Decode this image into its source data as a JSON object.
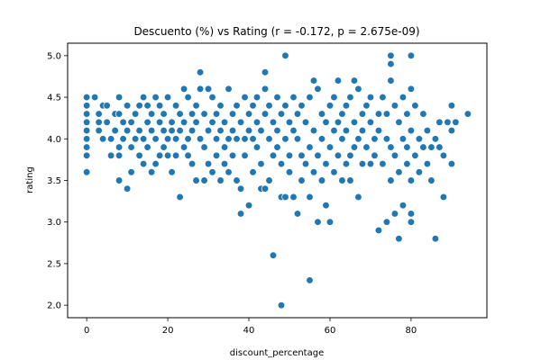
{
  "chart_data": {
    "type": "scatter",
    "title": "Descuento (%) vs Rating (r = -0.172, p = 2.675e-09)",
    "xlabel": "discount_percentage",
    "ylabel": "rating",
    "xlim": [
      -4.7,
      98.7
    ],
    "ylim": [
      1.85,
      5.15
    ],
    "xticks": [
      0,
      20,
      40,
      60,
      80
    ],
    "yticks": [
      2.0,
      2.5,
      3.0,
      3.5,
      4.0,
      4.5,
      5.0
    ],
    "xtick_labels": [
      "0",
      "20",
      "40",
      "60",
      "80"
    ],
    "ytick_labels": [
      "2.0",
      "2.5",
      "3.0",
      "3.5",
      "4.0",
      "4.5",
      "5.0"
    ],
    "marker_color": "#1f77b4",
    "grid": false,
    "points": [
      [
        0,
        4.5
      ],
      [
        0,
        4.4
      ],
      [
        0,
        4.3
      ],
      [
        0,
        4.2
      ],
      [
        0,
        4.1
      ],
      [
        0,
        4.0
      ],
      [
        0,
        3.9
      ],
      [
        0,
        3.8
      ],
      [
        0,
        3.6
      ],
      [
        2,
        4.5
      ],
      [
        3,
        4.1
      ],
      [
        3,
        4.2
      ],
      [
        3,
        4.3
      ],
      [
        4,
        4.0
      ],
      [
        4,
        4.4
      ],
      [
        5,
        4.4
      ],
      [
        5,
        4.2
      ],
      [
        6,
        4.0
      ],
      [
        6,
        3.8
      ],
      [
        7,
        4.1
      ],
      [
        7,
        4.3
      ],
      [
        8,
        3.9
      ],
      [
        8,
        3.8
      ],
      [
        8,
        3.5
      ],
      [
        8,
        4.3
      ],
      [
        8,
        4.5
      ],
      [
        9,
        4.2
      ],
      [
        9,
        4.0
      ],
      [
        10,
        3.4
      ],
      [
        10,
        4.1
      ],
      [
        10,
        4.4
      ],
      [
        11,
        4.2
      ],
      [
        11,
        3.6
      ],
      [
        11,
        3.9
      ],
      [
        12,
        4.0
      ],
      [
        12,
        4.3
      ],
      [
        13,
        4.1
      ],
      [
        13,
        4.4
      ],
      [
        13,
        3.8
      ],
      [
        14,
        4.0
      ],
      [
        14,
        4.5
      ],
      [
        14,
        3.7
      ],
      [
        15,
        4.2
      ],
      [
        15,
        3.9
      ],
      [
        15,
        4.4
      ],
      [
        16,
        4.1
      ],
      [
        16,
        4.3
      ],
      [
        16,
        3.6
      ],
      [
        17,
        4.5
      ],
      [
        17,
        4.0
      ],
      [
        17,
        3.7
      ],
      [
        18,
        4.2
      ],
      [
        18,
        4.4
      ],
      [
        18,
        3.8
      ],
      [
        19,
        4.1
      ],
      [
        19,
        4.3
      ],
      [
        19,
        3.9
      ],
      [
        20,
        4.0
      ],
      [
        20,
        4.5
      ],
      [
        20,
        3.8
      ],
      [
        21,
        4.2
      ],
      [
        21,
        4.1
      ],
      [
        21,
        3.6
      ],
      [
        22,
        4.4
      ],
      [
        22,
        4.0
      ],
      [
        22,
        3.8
      ],
      [
        23,
        4.3
      ],
      [
        23,
        3.3
      ],
      [
        23,
        4.1
      ],
      [
        24,
        4.6
      ],
      [
        24,
        4.2
      ],
      [
        24,
        3.9
      ],
      [
        25,
        4.0
      ],
      [
        25,
        4.5
      ],
      [
        25,
        3.8
      ],
      [
        26,
        4.3
      ],
      [
        26,
        4.1
      ],
      [
        26,
        3.7
      ],
      [
        27,
        4.4
      ],
      [
        27,
        4.2
      ],
      [
        27,
        3.5
      ],
      [
        28,
        4.8
      ],
      [
        28,
        4.0
      ],
      [
        28,
        4.6
      ],
      [
        29,
        4.3
      ],
      [
        29,
        3.9
      ],
      [
        29,
        3.5
      ],
      [
        30,
        4.6
      ],
      [
        30,
        4.1
      ],
      [
        30,
        3.7
      ],
      [
        31,
        4.2
      ],
      [
        31,
        4.5
      ],
      [
        31,
        3.6
      ],
      [
        32,
        4.0
      ],
      [
        32,
        4.3
      ],
      [
        32,
        3.8
      ],
      [
        33,
        4.4
      ],
      [
        33,
        3.5
      ],
      [
        33,
        4.1
      ],
      [
        34,
        4.2
      ],
      [
        34,
        3.9
      ],
      [
        34,
        3.7
      ],
      [
        35,
        4.6
      ],
      [
        35,
        4.0
      ],
      [
        35,
        3.6
      ],
      [
        36,
        4.3
      ],
      [
        36,
        4.1
      ],
      [
        36,
        3.8
      ],
      [
        37,
        4.4
      ],
      [
        37,
        3.5
      ],
      [
        37,
        4.0
      ],
      [
        38,
        3.1
      ],
      [
        38,
        3.4
      ],
      [
        38,
        4.2
      ],
      [
        39,
        4.5
      ],
      [
        39,
        3.8
      ],
      [
        39,
        4.0
      ],
      [
        40,
        4.3
      ],
      [
        40,
        3.2
      ],
      [
        40,
        4.1
      ],
      [
        41,
        4.4
      ],
      [
        41,
        3.6
      ],
      [
        41,
        4.0
      ],
      [
        42,
        4.2
      ],
      [
        42,
        3.9
      ],
      [
        42,
        4.5
      ],
      [
        43,
        3.4
      ],
      [
        43,
        4.1
      ],
      [
        43,
        3.7
      ],
      [
        44,
        4.8
      ],
      [
        44,
        4.3
      ],
      [
        44,
        3.4
      ],
      [
        44,
        4.6
      ],
      [
        45,
        3.5
      ],
      [
        45,
        4.0
      ],
      [
        45,
        4.4
      ],
      [
        46,
        2.6
      ],
      [
        46,
        4.2
      ],
      [
        46,
        3.8
      ],
      [
        47,
        4.5
      ],
      [
        47,
        3.9
      ],
      [
        47,
        4.1
      ],
      [
        48,
        2.0
      ],
      [
        48,
        3.3
      ],
      [
        48,
        4.3
      ],
      [
        48,
        3.7
      ],
      [
        49,
        5.0
      ],
      [
        49,
        4.4
      ],
      [
        49,
        3.3
      ],
      [
        49,
        4.0
      ],
      [
        50,
        3.6
      ],
      [
        50,
        4.2
      ],
      [
        50,
        3.8
      ],
      [
        51,
        4.5
      ],
      [
        51,
        3.3
      ],
      [
        51,
        4.1
      ],
      [
        52,
        3.1
      ],
      [
        52,
        4.0
      ],
      [
        52,
        4.3
      ],
      [
        53,
        3.8
      ],
      [
        53,
        4.4
      ],
      [
        53,
        3.5
      ],
      [
        54,
        4.2
      ],
      [
        54,
        3.7
      ],
      [
        55,
        2.3
      ],
      [
        55,
        4.5
      ],
      [
        55,
        3.9
      ],
      [
        55,
        3.3
      ],
      [
        56,
        4.7
      ],
      [
        56,
        4.1
      ],
      [
        56,
        3.6
      ],
      [
        57,
        3.0
      ],
      [
        57,
        4.6
      ],
      [
        57,
        3.8
      ],
      [
        58,
        4.3
      ],
      [
        58,
        3.5
      ],
      [
        58,
        4.0
      ],
      [
        59,
        3.2
      ],
      [
        59,
        4.2
      ],
      [
        59,
        3.7
      ],
      [
        60,
        3.0
      ],
      [
        60,
        4.4
      ],
      [
        60,
        3.9
      ],
      [
        61,
        4.1
      ],
      [
        61,
        3.6
      ],
      [
        61,
        4.5
      ],
      [
        62,
        4.7
      ],
      [
        62,
        3.8
      ],
      [
        62,
        4.2
      ],
      [
        63,
        3.5
      ],
      [
        63,
        4.3
      ],
      [
        63,
        4.0
      ],
      [
        64,
        4.4
      ],
      [
        64,
        3.7
      ],
      [
        64,
        4.1
      ],
      [
        65,
        3.8
      ],
      [
        65,
        4.5
      ],
      [
        65,
        3.5
      ],
      [
        66,
        4.7
      ],
      [
        66,
        4.2
      ],
      [
        66,
        3.9
      ],
      [
        67,
        4.6
      ],
      [
        67,
        3.3
      ],
      [
        67,
        4.0
      ],
      [
        68,
        4.3
      ],
      [
        68,
        3.7
      ],
      [
        68,
        4.1
      ],
      [
        69,
        4.4
      ],
      [
        69,
        3.9
      ],
      [
        70,
        4.2
      ],
      [
        70,
        3.7
      ],
      [
        70,
        4.5
      ],
      [
        71,
        4.0
      ],
      [
        71,
        3.8
      ],
      [
        72,
        2.9
      ],
      [
        72,
        4.3
      ],
      [
        72,
        4.1
      ],
      [
        73,
        3.7
      ],
      [
        73,
        4.5
      ],
      [
        74,
        3.0
      ],
      [
        74,
        4.0
      ],
      [
        74,
        4.3
      ],
      [
        75,
        5.0
      ],
      [
        75,
        4.9
      ],
      [
        75,
        4.7
      ],
      [
        75,
        3.5
      ],
      [
        75,
        3.9
      ],
      [
        76,
        3.8
      ],
      [
        76,
        4.4
      ],
      [
        76,
        3.1
      ],
      [
        77,
        2.8
      ],
      [
        77,
        4.2
      ],
      [
        77,
        3.6
      ],
      [
        78,
        3.2
      ],
      [
        78,
        4.0
      ],
      [
        78,
        4.5
      ],
      [
        79,
        3.9
      ],
      [
        79,
        4.3
      ],
      [
        79,
        3.7
      ],
      [
        80,
        5.0
      ],
      [
        80,
        4.6
      ],
      [
        80,
        3.1
      ],
      [
        80,
        3.0
      ],
      [
        80,
        4.1
      ],
      [
        80,
        3.5
      ],
      [
        81,
        4.4
      ],
      [
        81,
        3.8
      ],
      [
        82,
        4.0
      ],
      [
        82,
        3.6
      ],
      [
        83,
        4.3
      ],
      [
        83,
        3.9
      ],
      [
        84,
        3.7
      ],
      [
        84,
        4.1
      ],
      [
        85,
        3.9
      ],
      [
        85,
        3.5
      ],
      [
        86,
        2.8
      ],
      [
        86,
        4.0
      ],
      [
        87,
        3.9
      ],
      [
        87,
        4.2
      ],
      [
        88,
        3.3
      ],
      [
        88,
        3.8
      ],
      [
        89,
        4.2
      ],
      [
        90,
        4.1
      ],
      [
        90,
        3.7
      ],
      [
        90,
        4.4
      ],
      [
        91,
        4.2
      ],
      [
        94,
        4.3
      ]
    ]
  }
}
